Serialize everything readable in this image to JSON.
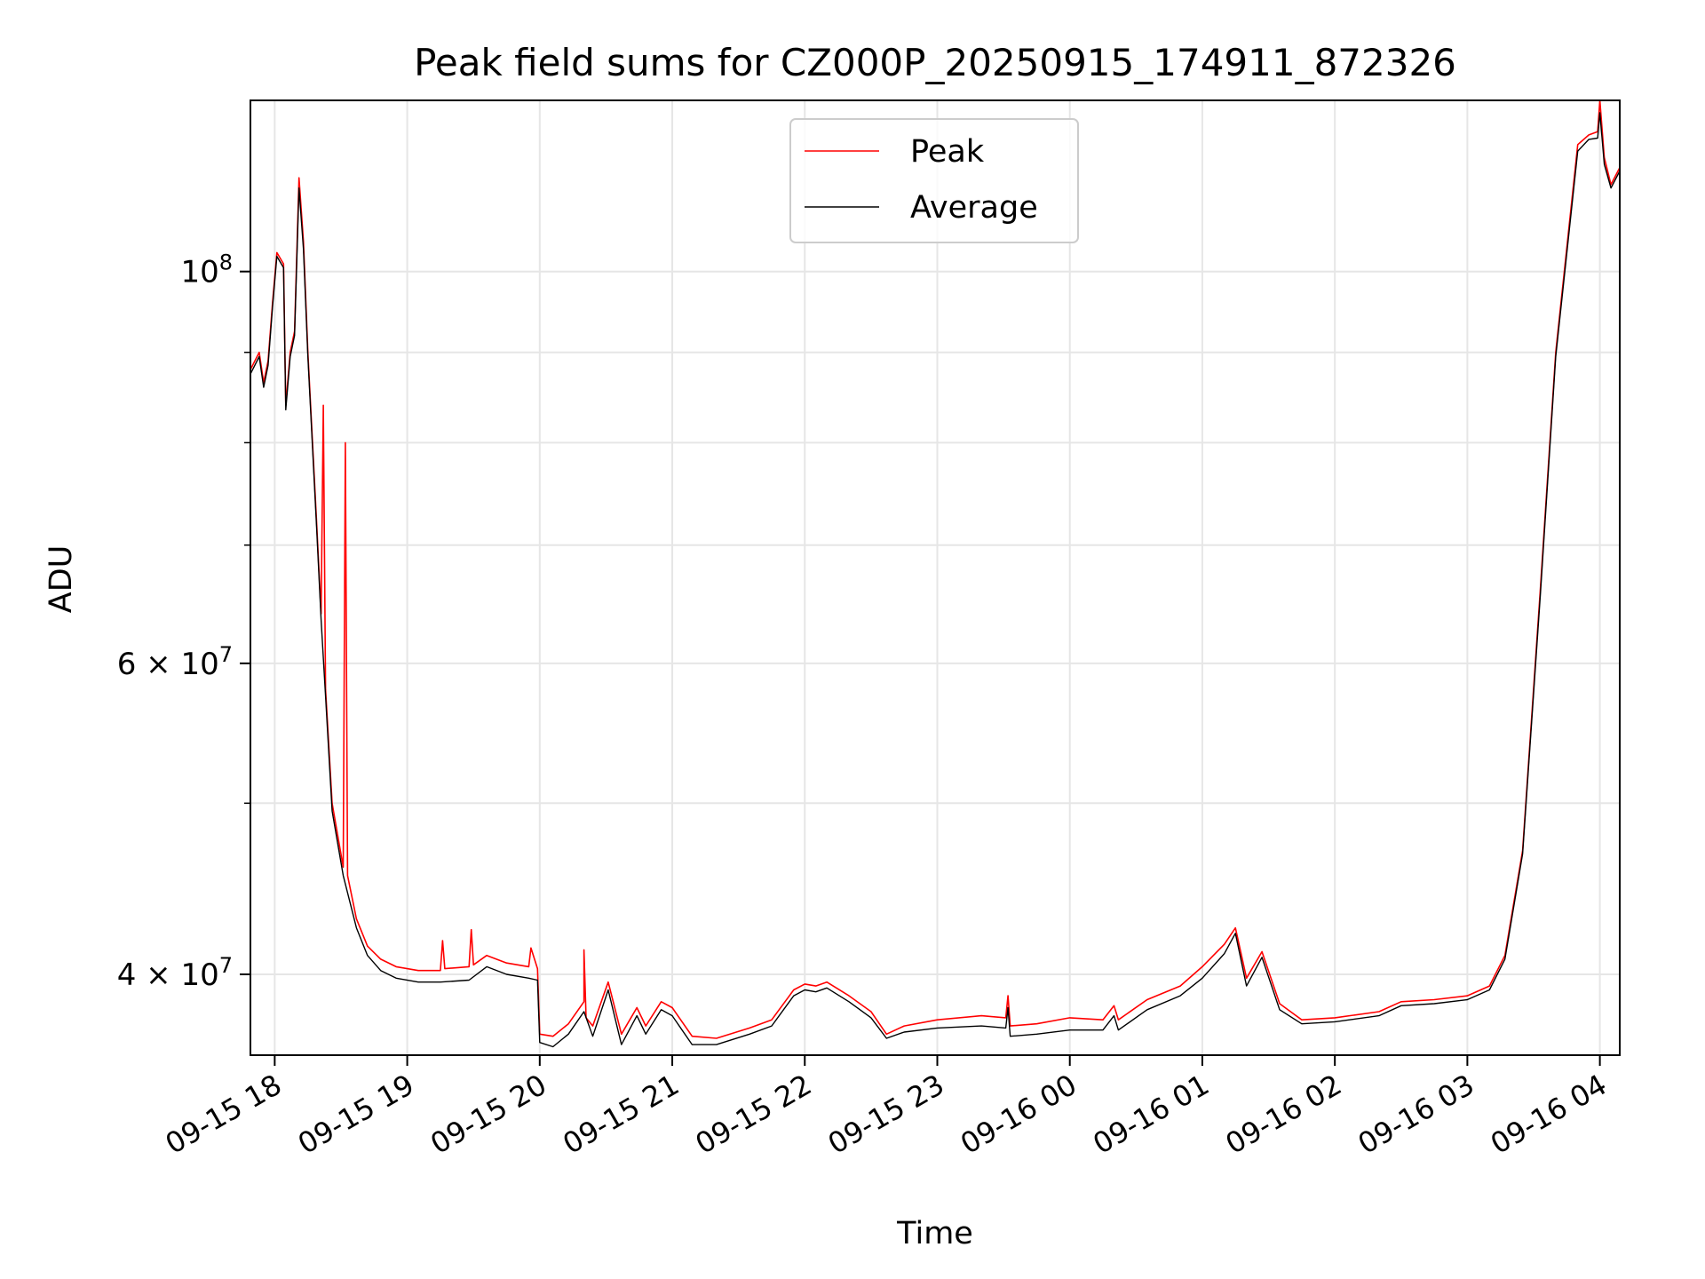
{
  "chart_data": {
    "type": "line",
    "title": "Peak field sums for CZ000P_20250915_174911_872326",
    "xlabel": "Time",
    "ylabel": "ADU",
    "y_scale": "log",
    "ylim": [
      36000000,
      125000000
    ],
    "xlim": [
      "2025-09-15 17:49",
      "2025-09-16 04:09"
    ],
    "x_ticks": [
      {
        "t": "2025-09-15 18:00",
        "label": "09-15 18"
      },
      {
        "t": "2025-09-15 19:00",
        "label": "09-15 19"
      },
      {
        "t": "2025-09-15 20:00",
        "label": "09-15 20"
      },
      {
        "t": "2025-09-15 21:00",
        "label": "09-15 21"
      },
      {
        "t": "2025-09-15 22:00",
        "label": "09-15 22"
      },
      {
        "t": "2025-09-15 23:00",
        "label": "09-15 23"
      },
      {
        "t": "2025-09-16 00:00",
        "label": "09-16 00"
      },
      {
        "t": "2025-09-16 01:00",
        "label": "09-16 01"
      },
      {
        "t": "2025-09-16 02:00",
        "label": "09-16 02"
      },
      {
        "t": "2025-09-16 03:00",
        "label": "09-16 03"
      },
      {
        "t": "2025-09-16 04:00",
        "label": "09-16 04"
      }
    ],
    "y_ticks": [
      {
        "value": 40000000,
        "mantissa": "4",
        "exp": "7"
      },
      {
        "value": 60000000,
        "mantissa": "6",
        "exp": "7"
      },
      {
        "value": 100000000,
        "mantissa": "",
        "exp": "8"
      }
    ],
    "y_minor_ticks": [
      50000000,
      70000000,
      80000000,
      90000000
    ],
    "grid": true,
    "legend": {
      "position": "top-center"
    },
    "series": [
      {
        "name": "Peak",
        "color": "#ff0000",
        "points": [
          [
            "2025-09-15 17:49",
            88000000
          ],
          [
            "2025-09-15 17:53",
            90000000
          ],
          [
            "2025-09-15 17:55",
            86500000
          ],
          [
            "2025-09-15 17:57",
            89000000
          ],
          [
            "2025-09-15 17:59",
            96000000
          ],
          [
            "2025-09-15 18:01",
            102500000
          ],
          [
            "2025-09-15 18:04",
            101000000
          ],
          [
            "2025-09-15 18:05",
            84000000
          ],
          [
            "2025-09-15 18:07",
            90000000
          ],
          [
            "2025-09-15 18:09",
            92500000
          ],
          [
            "2025-09-15 18:11",
            113000000
          ],
          [
            "2025-09-15 18:13",
            104000000
          ],
          [
            "2025-09-15 18:15",
            90000000
          ],
          [
            "2025-09-15 18:19",
            72000000
          ],
          [
            "2025-09-15 18:21",
            64000000
          ],
          [
            "2025-09-15 18:22",
            84000000
          ],
          [
            "2025-09-15 18:23",
            58000000
          ],
          [
            "2025-09-15 18:26",
            50000000
          ],
          [
            "2025-09-15 18:31",
            46000000
          ],
          [
            "2025-09-15 18:32",
            80000000
          ],
          [
            "2025-09-15 18:33",
            45500000
          ],
          [
            "2025-09-15 18:37",
            43000000
          ],
          [
            "2025-09-15 18:42",
            41500000
          ],
          [
            "2025-09-15 18:48",
            40800000
          ],
          [
            "2025-09-15 18:55",
            40400000
          ],
          [
            "2025-09-15 19:05",
            40200000
          ],
          [
            "2025-09-15 19:15",
            40200000
          ],
          [
            "2025-09-15 19:16",
            41800000
          ],
          [
            "2025-09-15 19:17",
            40300000
          ],
          [
            "2025-09-15 19:28",
            40400000
          ],
          [
            "2025-09-15 19:29",
            42400000
          ],
          [
            "2025-09-15 19:30",
            40500000
          ],
          [
            "2025-09-15 19:36",
            41000000
          ],
          [
            "2025-09-15 19:45",
            40600000
          ],
          [
            "2025-09-15 19:55",
            40400000
          ],
          [
            "2025-09-15 19:56",
            41400000
          ],
          [
            "2025-09-15 19:59",
            40300000
          ],
          [
            "2025-09-15 20:00",
            37000000
          ],
          [
            "2025-09-15 20:06",
            36900000
          ],
          [
            "2025-09-15 20:13",
            37500000
          ],
          [
            "2025-09-15 20:20",
            38600000
          ],
          [
            "2025-09-15 20:20",
            41300000
          ],
          [
            "2025-09-15 20:21",
            37800000
          ],
          [
            "2025-09-15 20:24",
            37400000
          ],
          [
            "2025-09-15 20:31",
            39600000
          ],
          [
            "2025-09-15 20:37",
            37000000
          ],
          [
            "2025-09-15 20:44",
            38300000
          ],
          [
            "2025-09-15 20:48",
            37400000
          ],
          [
            "2025-09-15 20:55",
            38600000
          ],
          [
            "2025-09-15 21:00",
            38300000
          ],
          [
            "2025-09-15 21:09",
            36900000
          ],
          [
            "2025-09-15 21:20",
            36800000
          ],
          [
            "2025-09-15 21:35",
            37300000
          ],
          [
            "2025-09-15 21:45",
            37700000
          ],
          [
            "2025-09-15 21:55",
            39200000
          ],
          [
            "2025-09-15 22:00",
            39500000
          ],
          [
            "2025-09-15 22:05",
            39400000
          ],
          [
            "2025-09-15 22:10",
            39600000
          ],
          [
            "2025-09-15 22:20",
            38900000
          ],
          [
            "2025-09-15 22:30",
            38100000
          ],
          [
            "2025-09-15 22:37",
            37000000
          ],
          [
            "2025-09-15 22:45",
            37400000
          ],
          [
            "2025-09-15 23:00",
            37700000
          ],
          [
            "2025-09-15 23:20",
            37900000
          ],
          [
            "2025-09-15 23:31",
            37800000
          ],
          [
            "2025-09-15 23:32",
            38900000
          ],
          [
            "2025-09-15 23:33",
            37400000
          ],
          [
            "2025-09-15 23:45",
            37500000
          ],
          [
            "2025-09-16 00:00",
            37800000
          ],
          [
            "2025-09-16 00:15",
            37700000
          ],
          [
            "2025-09-16 00:20",
            38400000
          ],
          [
            "2025-09-16 00:22",
            37700000
          ],
          [
            "2025-09-16 00:35",
            38700000
          ],
          [
            "2025-09-16 00:50",
            39400000
          ],
          [
            "2025-09-16 01:00",
            40400000
          ],
          [
            "2025-09-16 01:10",
            41600000
          ],
          [
            "2025-09-16 01:15",
            42500000
          ],
          [
            "2025-09-16 01:20",
            39800000
          ],
          [
            "2025-09-16 01:27",
            41200000
          ],
          [
            "2025-09-16 01:35",
            38500000
          ],
          [
            "2025-09-16 01:45",
            37700000
          ],
          [
            "2025-09-16 02:00",
            37800000
          ],
          [
            "2025-09-16 02:20",
            38100000
          ],
          [
            "2025-09-16 02:30",
            38600000
          ],
          [
            "2025-09-16 02:45",
            38700000
          ],
          [
            "2025-09-16 03:00",
            38900000
          ],
          [
            "2025-09-16 03:10",
            39400000
          ],
          [
            "2025-09-16 03:17",
            41000000
          ],
          [
            "2025-09-16 03:25",
            47000000
          ],
          [
            "2025-09-16 03:33",
            66000000
          ],
          [
            "2025-09-16 03:40",
            90000000
          ],
          [
            "2025-09-16 03:50",
            118000000
          ],
          [
            "2025-09-16 03:55",
            119500000
          ],
          [
            "2025-09-16 03:59",
            120000000
          ],
          [
            "2025-09-16 04:00",
            125000000
          ],
          [
            "2025-09-16 04:02",
            116000000
          ],
          [
            "2025-09-16 04:05",
            112000000
          ],
          [
            "2025-09-16 04:09",
            114500000
          ]
        ]
      },
      {
        "name": "Average",
        "color": "#000000",
        "points": [
          [
            "2025-09-15 17:49",
            87500000
          ],
          [
            "2025-09-15 17:53",
            89500000
          ],
          [
            "2025-09-15 17:55",
            86000000
          ],
          [
            "2025-09-15 17:57",
            88500000
          ],
          [
            "2025-09-15 17:59",
            95500000
          ],
          [
            "2025-09-15 18:01",
            102000000
          ],
          [
            "2025-09-15 18:04",
            100500000
          ],
          [
            "2025-09-15 18:05",
            83500000
          ],
          [
            "2025-09-15 18:07",
            89500000
          ],
          [
            "2025-09-15 18:09",
            92000000
          ],
          [
            "2025-09-15 18:11",
            111500000
          ],
          [
            "2025-09-15 18:13",
            103000000
          ],
          [
            "2025-09-15 18:15",
            89500000
          ],
          [
            "2025-09-15 18:19",
            71500000
          ],
          [
            "2025-09-15 18:21",
            63500000
          ],
          [
            "2025-09-15 18:23",
            57500000
          ],
          [
            "2025-09-15 18:26",
            49500000
          ],
          [
            "2025-09-15 18:31",
            45500000
          ],
          [
            "2025-09-15 18:37",
            42500000
          ],
          [
            "2025-09-15 18:42",
            41000000
          ],
          [
            "2025-09-15 18:48",
            40200000
          ],
          [
            "2025-09-15 18:55",
            39800000
          ],
          [
            "2025-09-15 19:05",
            39600000
          ],
          [
            "2025-09-15 19:15",
            39600000
          ],
          [
            "2025-09-15 19:28",
            39700000
          ],
          [
            "2025-09-15 19:36",
            40400000
          ],
          [
            "2025-09-15 19:45",
            40000000
          ],
          [
            "2025-09-15 19:55",
            39800000
          ],
          [
            "2025-09-15 19:59",
            39700000
          ],
          [
            "2025-09-15 20:00",
            36600000
          ],
          [
            "2025-09-15 20:06",
            36400000
          ],
          [
            "2025-09-15 20:13",
            37000000
          ],
          [
            "2025-09-15 20:20",
            38100000
          ],
          [
            "2025-09-15 20:24",
            36900000
          ],
          [
            "2025-09-15 20:31",
            39200000
          ],
          [
            "2025-09-15 20:37",
            36500000
          ],
          [
            "2025-09-15 20:44",
            37900000
          ],
          [
            "2025-09-15 20:48",
            37000000
          ],
          [
            "2025-09-15 20:55",
            38200000
          ],
          [
            "2025-09-15 21:00",
            37900000
          ],
          [
            "2025-09-15 21:09",
            36500000
          ],
          [
            "2025-09-15 21:20",
            36500000
          ],
          [
            "2025-09-15 21:35",
            37000000
          ],
          [
            "2025-09-15 21:45",
            37400000
          ],
          [
            "2025-09-15 21:55",
            38900000
          ],
          [
            "2025-09-15 22:00",
            39200000
          ],
          [
            "2025-09-15 22:05",
            39100000
          ],
          [
            "2025-09-15 22:10",
            39300000
          ],
          [
            "2025-09-15 22:20",
            38600000
          ],
          [
            "2025-09-15 22:30",
            37800000
          ],
          [
            "2025-09-15 22:37",
            36800000
          ],
          [
            "2025-09-15 22:45",
            37100000
          ],
          [
            "2025-09-15 23:00",
            37300000
          ],
          [
            "2025-09-15 23:20",
            37400000
          ],
          [
            "2025-09-15 23:31",
            37300000
          ],
          [
            "2025-09-15 23:32",
            38300000
          ],
          [
            "2025-09-15 23:33",
            36900000
          ],
          [
            "2025-09-15 23:45",
            37000000
          ],
          [
            "2025-09-16 00:00",
            37200000
          ],
          [
            "2025-09-16 00:15",
            37200000
          ],
          [
            "2025-09-16 00:20",
            37900000
          ],
          [
            "2025-09-16 00:22",
            37200000
          ],
          [
            "2025-09-16 00:35",
            38200000
          ],
          [
            "2025-09-16 00:50",
            38900000
          ],
          [
            "2025-09-16 01:00",
            39800000
          ],
          [
            "2025-09-16 01:10",
            41100000
          ],
          [
            "2025-09-16 01:15",
            42200000
          ],
          [
            "2025-09-16 01:20",
            39400000
          ],
          [
            "2025-09-16 01:27",
            40900000
          ],
          [
            "2025-09-16 01:35",
            38200000
          ],
          [
            "2025-09-16 01:45",
            37500000
          ],
          [
            "2025-09-16 02:00",
            37600000
          ],
          [
            "2025-09-16 02:20",
            37900000
          ],
          [
            "2025-09-16 02:30",
            38400000
          ],
          [
            "2025-09-16 02:45",
            38500000
          ],
          [
            "2025-09-16 03:00",
            38700000
          ],
          [
            "2025-09-16 03:10",
            39200000
          ],
          [
            "2025-09-16 03:17",
            40800000
          ],
          [
            "2025-09-16 03:25",
            46800000
          ],
          [
            "2025-09-16 03:33",
            65500000
          ],
          [
            "2025-09-16 03:40",
            89500000
          ],
          [
            "2025-09-16 03:50",
            117000000
          ],
          [
            "2025-09-16 03:55",
            118800000
          ],
          [
            "2025-09-16 03:59",
            119000000
          ],
          [
            "2025-09-16 04:00",
            123000000
          ],
          [
            "2025-09-16 04:02",
            115000000
          ],
          [
            "2025-09-16 04:05",
            111500000
          ],
          [
            "2025-09-16 04:09",
            114000000
          ]
        ]
      }
    ]
  }
}
